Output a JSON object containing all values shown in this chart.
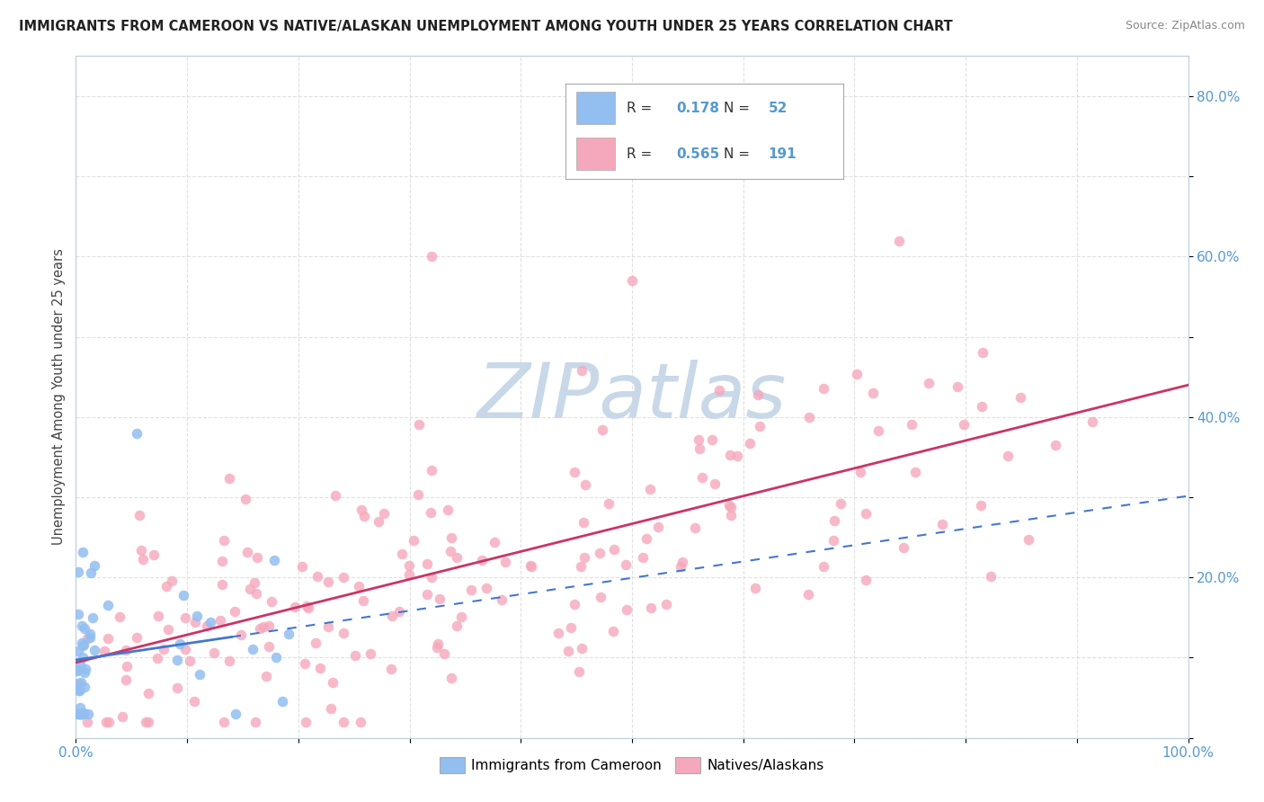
{
  "title": "IMMIGRANTS FROM CAMEROON VS NATIVE/ALASKAN UNEMPLOYMENT AMONG YOUTH UNDER 25 YEARS CORRELATION CHART",
  "source": "Source: ZipAtlas.com",
  "ylabel": "Unemployment Among Youth under 25 years",
  "blue_R": "0.178",
  "blue_N": "52",
  "pink_R": "0.565",
  "pink_N": "191",
  "blue_color": "#92BEF0",
  "pink_color": "#F5A8BC",
  "blue_line_color": "#4477CC",
  "pink_line_color": "#CC3366",
  "watermark_color": "#C8D8E8",
  "legend_label_blue": "Immigrants from Cameroon",
  "legend_label_pink": "Natives/Alaskans",
  "grid_color": "#DDDDDD",
  "tick_color": "#5599CC",
  "title_color": "#222222",
  "source_color": "#888888"
}
